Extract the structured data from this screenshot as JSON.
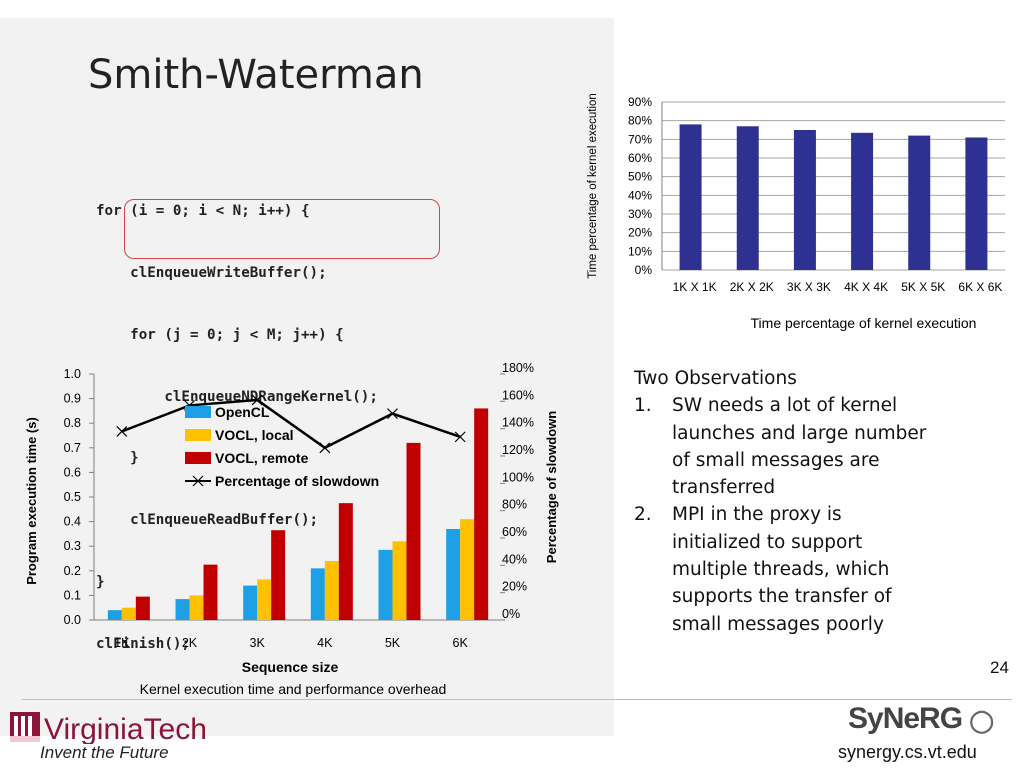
{
  "slide": {
    "title": "Smith-Waterman",
    "code_lines": [
      "for (i = 0; i < N; i++) {",
      "    clEnqueueWriteBuffer();",
      "    for (j = 0; j < M; j++) {",
      "        clEnqueueNDRangeKernel();",
      "    }",
      "    clEnqueueReadBuffer();",
      "}",
      "clFinish();"
    ],
    "observations": {
      "heading": "Two Observations",
      "items": [
        {
          "num": "1.",
          "text": [
            "SW needs a lot of kernel",
            "launches and large number",
            "of small messages are",
            "transferred"
          ]
        },
        {
          "num": "2.",
          "text": [
            "MPI in the proxy is",
            "initialized to support",
            "multiple threads, which",
            "supports the transfer of",
            "small messages poorly"
          ]
        }
      ]
    },
    "page_number": "24",
    "footer": {
      "logo_text": "VirginiaTech",
      "tagline": "Invent the Future",
      "lab_logo": "SyNeRG",
      "url": "synergy.cs.vt.edu"
    }
  },
  "chart_data": [
    {
      "type": "bar",
      "categories": [
        "1K X 1K",
        "2K X 2K",
        "3K X 3K",
        "4K X 4K",
        "5K X 5K",
        "6K X 6K"
      ],
      "values": [
        78,
        77,
        75,
        73.5,
        72,
        71
      ],
      "ylabel": "Time percentage of kernel execution",
      "ylim": [
        0,
        90
      ],
      "yticks": [
        "0%",
        "10%",
        "20%",
        "30%",
        "40%",
        "50%",
        "60%",
        "70%",
        "80%",
        "90%"
      ],
      "caption": "Time percentage of kernel execution",
      "color": "#2e3192",
      "grid": true
    },
    {
      "type": "bar",
      "categories": [
        "1K",
        "2K",
        "3K",
        "4K",
        "5K",
        "6K"
      ],
      "series": [
        {
          "name": "OpenCL",
          "color": "#1ea0e6",
          "values": [
            0.04,
            0.085,
            0.14,
            0.21,
            0.285,
            0.37
          ]
        },
        {
          "name": "VOCL, local",
          "color": "#ffc000",
          "values": [
            0.05,
            0.1,
            0.165,
            0.24,
            0.32,
            0.41
          ]
        },
        {
          "name": "VOCL, remote",
          "color": "#c00000",
          "values": [
            0.095,
            0.225,
            0.365,
            0.475,
            0.72,
            0.86
          ]
        }
      ],
      "line_series": {
        "name": "Percentage of slowdown",
        "color": "#000000",
        "values": [
          138,
          157,
          161,
          126,
          151,
          134
        ]
      },
      "xlabel": "Sequence size",
      "ylabel": "Program execution time (s)",
      "y2label": "Percentage of slowdown",
      "ylim": [
        0,
        1.0
      ],
      "y2lim": [
        0,
        180
      ],
      "yticks": [
        "0.0",
        "0.1",
        "0.2",
        "0.3",
        "0.4",
        "0.5",
        "0.6",
        "0.7",
        "0.8",
        "0.9",
        "1.0"
      ],
      "y2ticks": [
        "0%",
        "20%",
        "40%",
        "60%",
        "80%",
        "100%",
        "120%",
        "140%",
        "160%",
        "180%"
      ],
      "legend_position": "top-left",
      "caption": "Kernel execution time and performance overhead"
    }
  ]
}
